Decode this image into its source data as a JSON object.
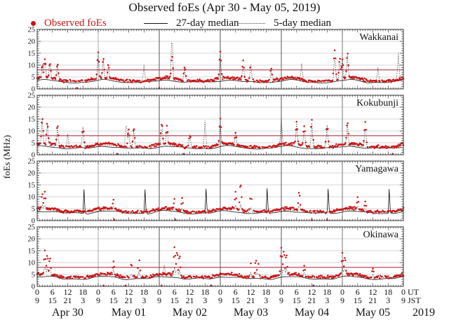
{
  "title": "Observed foEs (Apr 30 - May 05, 2019)",
  "legend": {
    "observed": "Observed foEs",
    "median27": "27-day median",
    "median5": "5-day median"
  },
  "colors": {
    "observed": "#cc1414",
    "median27": "#111111",
    "median5": "#333333",
    "criteria_line": "#b03545",
    "gridline": "#c9c9c9",
    "day_line_light": "#aaaaaa",
    "day_line_dark": "#555555",
    "frame": "#333333"
  },
  "y_axis": {
    "label": "foEs (MHz)",
    "min": 0,
    "max": 25,
    "tick_labels": [
      "0",
      "5",
      "10",
      "15",
      "20",
      "25"
    ],
    "gridlines_mhz": [
      5,
      10,
      15,
      20
    ]
  },
  "x_axis": {
    "days": [
      "Apr 30",
      "May 01",
      "May 02",
      "May 03",
      "May 04",
      "May 05"
    ],
    "year": "2019",
    "ut_label": "UT",
    "jst_label": "JST",
    "ut_row": [
      "0",
      "6",
      "12",
      "18",
      "0",
      "6",
      "12",
      "18",
      "0",
      "6",
      "12",
      "18",
      "0",
      "6",
      "12",
      "18",
      "0",
      "6",
      "12",
      "18",
      "0",
      "6",
      "12",
      "18",
      "0"
    ],
    "jst_row": [
      "9",
      "15",
      "21",
      "3",
      "9",
      "15",
      "21",
      "3",
      "9",
      "15",
      "21",
      "3",
      "9",
      "15",
      "21",
      "3",
      "9",
      "15",
      "21",
      "3",
      "9",
      "15",
      "21",
      "3",
      "9"
    ]
  },
  "chart_data": {
    "type": "scatter",
    "title": "Observed foEs (Apr 30 - May 05, 2019)",
    "ylabel": "foEs (MHz)",
    "ylim": [
      0,
      25
    ],
    "x_span_days": 6,
    "x_tick_hours_ut": [
      0,
      6,
      12,
      18
    ],
    "legend_entries": [
      "Observed foEs",
      "27-day median",
      "5-day median"
    ],
    "legend_position": "top",
    "grid": true,
    "stations": [
      {
        "name": "Wakkanai",
        "criteria_mhz": 8,
        "baseline_mhz": 3.4,
        "median27_base_mhz": 2.8,
        "median5_spike_scale": 0.85,
        "observed_peaks_day_hourUT_mhz": [
          [
            0,
            2,
            10
          ],
          [
            0,
            3,
            13
          ],
          [
            0,
            5,
            11
          ],
          [
            0,
            8,
            10.5
          ],
          [
            1,
            0,
            15.2
          ],
          [
            1,
            2,
            13
          ],
          [
            1,
            4,
            10
          ],
          [
            2,
            5,
            13.5
          ],
          [
            2,
            10,
            9.7
          ],
          [
            3,
            0,
            15.5
          ],
          [
            3,
            9,
            12
          ],
          [
            3,
            12,
            11
          ],
          [
            3,
            20,
            8.5
          ],
          [
            4,
            21,
            16
          ],
          [
            4,
            23,
            13
          ],
          [
            5,
            0,
            12.5
          ],
          [
            5,
            2,
            15
          ]
        ],
        "median5_only_peaks_day_hourUT_mhz": [
          [
            1,
            18,
            10
          ],
          [
            2,
            5,
            15
          ],
          [
            4,
            8,
            10
          ],
          [
            5,
            14,
            9
          ],
          [
            5,
            22,
            15
          ]
        ]
      },
      {
        "name": "Kokubunji",
        "criteria_mhz": 8,
        "baseline_mhz": 3.3,
        "median27_base_mhz": 2.7,
        "median5_spike_scale": 0.85,
        "observed_peaks_day_hourUT_mhz": [
          [
            0,
            2,
            15.7
          ],
          [
            0,
            4,
            13.2
          ],
          [
            0,
            8,
            12.5
          ],
          [
            0,
            18,
            12.5
          ],
          [
            1,
            12,
            10.8
          ],
          [
            1,
            14,
            11
          ],
          [
            2,
            1,
            13.4
          ],
          [
            2,
            3,
            12
          ],
          [
            2,
            12,
            9
          ],
          [
            3,
            0,
            15
          ],
          [
            3,
            6,
            9
          ],
          [
            4,
            6,
            13.9
          ],
          [
            4,
            9,
            12
          ],
          [
            4,
            12,
            15
          ],
          [
            4,
            18,
            13.8
          ],
          [
            5,
            2,
            13.8
          ],
          [
            5,
            9,
            13.8
          ]
        ],
        "median5_only_peaks_day_hourUT_mhz": [
          [
            0,
            12,
            9
          ],
          [
            1,
            11,
            14.7
          ],
          [
            2,
            18,
            15
          ],
          [
            4,
            0,
            15.3
          ]
        ]
      },
      {
        "name": "Yamagawa",
        "criteria_mhz": null,
        "baseline_mhz": 3.8,
        "median27_base_mhz": 3.1,
        "median5_spike_scale": 0.25,
        "median27_daily_spike": {
          "hour_ut": 18.5,
          "peak_mhz": 15.5
        },
        "observed_peaks_day_hourUT_mhz": [
          [
            0,
            2,
            11
          ],
          [
            0,
            3,
            12.3
          ],
          [
            1,
            6,
            8.5
          ],
          [
            2,
            6,
            9
          ],
          [
            2,
            9,
            9.5
          ],
          [
            3,
            6,
            12
          ],
          [
            3,
            8,
            15.3
          ],
          [
            3,
            12,
            11.5
          ],
          [
            4,
            7,
            11.8
          ],
          [
            5,
            6,
            9.5
          ],
          [
            5,
            9,
            8
          ]
        ],
        "median5_only_peaks_day_hourUT_mhz": []
      },
      {
        "name": "Okinawa",
        "criteria_mhz": 8,
        "baseline_mhz": 3.9,
        "median27_base_mhz": 3.2,
        "median5_spike_scale": 0.3,
        "observed_peaks_day_hourUT_mhz": [
          [
            0,
            3,
            15
          ],
          [
            0,
            4,
            13
          ],
          [
            0,
            5,
            12
          ],
          [
            1,
            6,
            10.4
          ],
          [
            1,
            13,
            9.5
          ],
          [
            1,
            16,
            12.4
          ],
          [
            2,
            6,
            16.2
          ],
          [
            2,
            7,
            14.5
          ],
          [
            2,
            8,
            13
          ],
          [
            3,
            12,
            9.5
          ],
          [
            3,
            14,
            11.3
          ],
          [
            3,
            15,
            9.5
          ],
          [
            4,
            0,
            16.5
          ],
          [
            4,
            1,
            14.8
          ],
          [
            4,
            2,
            13.5
          ],
          [
            4,
            9,
            9.2
          ],
          [
            5,
            0,
            13.9
          ],
          [
            5,
            1,
            12.5
          ],
          [
            5,
            12,
            7.5
          ]
        ],
        "median5_only_peaks_day_hourUT_mhz": [
          [
            2,
            2,
            7.5
          ]
        ]
      }
    ]
  }
}
